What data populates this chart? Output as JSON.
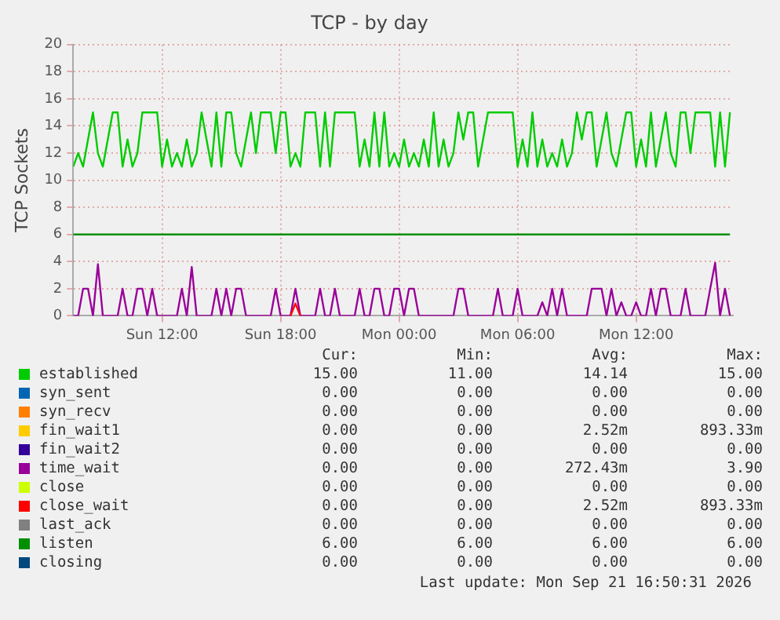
{
  "chart_data": {
    "type": "line",
    "title": "TCP - by day",
    "ylabel": "TCP Sockets",
    "x": [
      "2026-09-20T07:30",
      "2026-09-20T07:45",
      "2026-09-20T08:00",
      "2026-09-20T08:15",
      "2026-09-20T08:30",
      "2026-09-20T08:45",
      "2026-09-20T09:00",
      "2026-09-20T09:15",
      "2026-09-20T09:30",
      "2026-09-20T09:45",
      "2026-09-20T10:00",
      "2026-09-20T10:15",
      "2026-09-20T10:30",
      "2026-09-20T10:45",
      "2026-09-20T11:00",
      "2026-09-20T11:15",
      "2026-09-20T11:30",
      "2026-09-20T11:45",
      "2026-09-20T12:00",
      "2026-09-20T12:15",
      "2026-09-20T12:30",
      "2026-09-20T12:45",
      "2026-09-20T13:00",
      "2026-09-20T13:15",
      "2026-09-20T13:30",
      "2026-09-20T13:45",
      "2026-09-20T14:00",
      "2026-09-20T14:15",
      "2026-09-20T14:30",
      "2026-09-20T14:45",
      "2026-09-20T15:00",
      "2026-09-20T15:15",
      "2026-09-20T15:30",
      "2026-09-20T15:45",
      "2026-09-20T16:00",
      "2026-09-20T16:15",
      "2026-09-20T16:30",
      "2026-09-20T16:45",
      "2026-09-20T17:00",
      "2026-09-20T17:15",
      "2026-09-20T17:30",
      "2026-09-20T17:45",
      "2026-09-20T18:00",
      "2026-09-20T18:15",
      "2026-09-20T18:30",
      "2026-09-20T18:45",
      "2026-09-20T19:00",
      "2026-09-20T19:15",
      "2026-09-20T19:30",
      "2026-09-20T19:45",
      "2026-09-20T20:00",
      "2026-09-20T20:15",
      "2026-09-20T20:30",
      "2026-09-20T20:45",
      "2026-09-20T21:00",
      "2026-09-20T21:15",
      "2026-09-20T21:30",
      "2026-09-20T21:45",
      "2026-09-20T22:00",
      "2026-09-20T22:15",
      "2026-09-20T22:30",
      "2026-09-20T22:45",
      "2026-09-20T23:00",
      "2026-09-20T23:15",
      "2026-09-20T23:30",
      "2026-09-20T23:45",
      "2026-09-21T00:00",
      "2026-09-21T00:15",
      "2026-09-21T00:30",
      "2026-09-21T00:45",
      "2026-09-21T01:00",
      "2026-09-21T01:15",
      "2026-09-21T01:30",
      "2026-09-21T01:45",
      "2026-09-21T02:00",
      "2026-09-21T02:15",
      "2026-09-21T02:30",
      "2026-09-21T02:45",
      "2026-09-21T03:00",
      "2026-09-21T03:15",
      "2026-09-21T03:30",
      "2026-09-21T03:45",
      "2026-09-21T04:00",
      "2026-09-21T04:15",
      "2026-09-21T04:30",
      "2026-09-21T04:45",
      "2026-09-21T05:00",
      "2026-09-21T05:15",
      "2026-09-21T05:30",
      "2026-09-21T05:45",
      "2026-09-21T06:00",
      "2026-09-21T06:15",
      "2026-09-21T06:30",
      "2026-09-21T06:45",
      "2026-09-21T07:00",
      "2026-09-21T07:15",
      "2026-09-21T07:30",
      "2026-09-21T07:45",
      "2026-09-21T08:00",
      "2026-09-21T08:15",
      "2026-09-21T08:30",
      "2026-09-21T08:45",
      "2026-09-21T09:00",
      "2026-09-21T09:15",
      "2026-09-21T09:30",
      "2026-09-21T09:45",
      "2026-09-21T10:00",
      "2026-09-21T10:15",
      "2026-09-21T10:30",
      "2026-09-21T10:45",
      "2026-09-21T11:00",
      "2026-09-21T11:15",
      "2026-09-21T11:30",
      "2026-09-21T11:45",
      "2026-09-21T12:00",
      "2026-09-21T12:15",
      "2026-09-21T12:30",
      "2026-09-21T12:45",
      "2026-09-21T13:00",
      "2026-09-21T13:15",
      "2026-09-21T13:30",
      "2026-09-21T13:45",
      "2026-09-21T14:00",
      "2026-09-21T14:15",
      "2026-09-21T14:30",
      "2026-09-21T14:45",
      "2026-09-21T15:00",
      "2026-09-21T15:15",
      "2026-09-21T15:30",
      "2026-09-21T15:45",
      "2026-09-21T16:00",
      "2026-09-21T16:15",
      "2026-09-21T16:30",
      "2026-09-21T16:45"
    ],
    "series": [
      {
        "name": "established",
        "color": "#00cc00",
        "values": [
          11,
          12,
          11,
          13,
          15,
          12,
          11,
          13,
          15,
          15,
          11,
          13,
          11,
          12,
          15,
          15,
          15,
          15,
          11,
          13,
          11,
          12,
          11,
          13,
          11,
          12,
          15,
          13,
          11,
          15,
          11,
          15,
          15,
          12,
          11,
          13,
          15,
          12,
          15,
          15,
          15,
          12,
          15,
          15,
          11,
          12,
          11,
          15,
          15,
          15,
          11,
          15,
          11,
          15,
          15,
          15,
          15,
          15,
          11,
          13,
          11,
          15,
          11,
          15,
          11,
          12,
          11,
          13,
          11,
          12,
          11,
          13,
          11,
          15,
          11,
          13,
          11,
          12,
          15,
          13,
          15,
          15,
          11,
          13,
          15,
          15,
          15,
          15,
          15,
          15,
          11,
          13,
          11,
          15,
          11,
          13,
          11,
          12,
          11,
          13,
          11,
          12,
          15,
          13,
          15,
          15,
          11,
          13,
          15,
          12,
          11,
          13,
          15,
          15,
          11,
          13,
          11,
          15,
          11,
          13,
          15,
          12,
          11,
          15,
          15,
          12,
          15,
          15,
          15,
          15,
          11,
          15,
          11,
          15
        ]
      },
      {
        "name": "syn_sent",
        "color": "#0066b3",
        "values": [
          null,
          null,
          null,
          null,
          null,
          null,
          null,
          null,
          null,
          null,
          null,
          null,
          null,
          null,
          null,
          null,
          null,
          null,
          null,
          null,
          null,
          null,
          null,
          null,
          null,
          null,
          null,
          null,
          null,
          null,
          null,
          null,
          null,
          null,
          null,
          null,
          null,
          null,
          null,
          null,
          null,
          null,
          null,
          null,
          null,
          null,
          null,
          null,
          null,
          null,
          null,
          null,
          null,
          null,
          null,
          null,
          null,
          null,
          null,
          null,
          null,
          null,
          null,
          null,
          null,
          null,
          null,
          null,
          null,
          null,
          null,
          null,
          null,
          null,
          null,
          null,
          null,
          null,
          null,
          null,
          null,
          null,
          null,
          null,
          null,
          null,
          null,
          null,
          null,
          null,
          null,
          null,
          null,
          null,
          null,
          null,
          null,
          null,
          null,
          null,
          null,
          null,
          null,
          null,
          null,
          null,
          null,
          null,
          null,
          null,
          null,
          null,
          null,
          null,
          null,
          null,
          null,
          null,
          null,
          null,
          null,
          null,
          null,
          null,
          null,
          null,
          null,
          null,
          null,
          null,
          null,
          null,
          null,
          null
        ]
      },
      {
        "name": "syn_recv",
        "color": "#ff8000",
        "values": [
          null,
          null,
          null,
          null,
          null,
          null,
          null,
          null,
          null,
          null,
          null,
          null,
          null,
          null,
          null,
          null,
          null,
          null,
          null,
          null,
          null,
          null,
          null,
          null,
          null,
          null,
          null,
          null,
          null,
          null,
          null,
          null,
          null,
          null,
          null,
          null,
          null,
          null,
          null,
          null,
          null,
          null,
          null,
          null,
          null,
          null,
          null,
          null,
          null,
          null,
          null,
          null,
          null,
          null,
          null,
          null,
          null,
          null,
          null,
          null,
          null,
          null,
          null,
          null,
          null,
          null,
          null,
          null,
          null,
          null,
          null,
          null,
          null,
          null,
          null,
          null,
          null,
          null,
          null,
          null,
          null,
          null,
          null,
          null,
          null,
          null,
          null,
          null,
          null,
          null,
          null,
          null,
          null,
          null,
          null,
          null,
          null,
          null,
          null,
          null,
          null,
          null,
          null,
          null,
          null,
          null,
          null,
          null,
          null,
          null,
          null,
          null,
          null,
          null,
          null,
          null,
          null,
          null,
          null,
          null,
          null,
          null,
          null,
          null,
          null,
          null,
          null,
          null,
          null,
          null,
          null,
          null,
          null,
          null
        ]
      },
      {
        "name": "fin_wait1",
        "color": "#ffcc00",
        "values": [
          null,
          null,
          null,
          null,
          null,
          null,
          null,
          null,
          null,
          null,
          null,
          null,
          null,
          null,
          null,
          null,
          null,
          null,
          null,
          null,
          null,
          null,
          null,
          null,
          null,
          null,
          null,
          null,
          null,
          null,
          null,
          null,
          null,
          null,
          null,
          null,
          null,
          null,
          null,
          null,
          null,
          null,
          null,
          null,
          null,
          null,
          null,
          null,
          null,
          null,
          null,
          null,
          null,
          null,
          null,
          null,
          null,
          null,
          null,
          null,
          null,
          null,
          null,
          null,
          null,
          null,
          null,
          null,
          null,
          null,
          null,
          null,
          null,
          null,
          null,
          null,
          null,
          null,
          null,
          null,
          null,
          null,
          null,
          null,
          null,
          null,
          null,
          null,
          null,
          null,
          null,
          null,
          null,
          null,
          null,
          null,
          null,
          null,
          null,
          null,
          null,
          null,
          null,
          null,
          null,
          null,
          null,
          null,
          null,
          null,
          null,
          null,
          null,
          null,
          null,
          null,
          null,
          null,
          null,
          null,
          null,
          null,
          null,
          null,
          null,
          null,
          null,
          null,
          null,
          null,
          null,
          null,
          null,
          null
        ]
      },
      {
        "name": "fin_wait2",
        "color": "#330099",
        "values": [
          null,
          null,
          null,
          null,
          null,
          null,
          null,
          null,
          null,
          null,
          null,
          null,
          null,
          null,
          null,
          null,
          null,
          null,
          null,
          null,
          null,
          null,
          null,
          null,
          null,
          null,
          null,
          null,
          null,
          null,
          null,
          null,
          null,
          null,
          null,
          null,
          null,
          null,
          null,
          null,
          null,
          null,
          null,
          null,
          null,
          null,
          null,
          null,
          null,
          null,
          null,
          null,
          null,
          null,
          null,
          null,
          null,
          null,
          null,
          null,
          null,
          null,
          null,
          null,
          null,
          null,
          null,
          null,
          null,
          null,
          null,
          null,
          null,
          null,
          null,
          null,
          null,
          null,
          null,
          null,
          null,
          null,
          null,
          null,
          null,
          null,
          null,
          null,
          null,
          null,
          null,
          null,
          null,
          null,
          null,
          null,
          null,
          null,
          null,
          null,
          null,
          null,
          null,
          null,
          null,
          null,
          null,
          null,
          null,
          null,
          null,
          null,
          null,
          null,
          null,
          null,
          null,
          null,
          null,
          null,
          null,
          null,
          null,
          null,
          null,
          null,
          null,
          null,
          null,
          null,
          null,
          null,
          null,
          null
        ]
      },
      {
        "name": "time_wait",
        "color": "#990099",
        "values": [
          0,
          0,
          2,
          2,
          0,
          3.8,
          0,
          0,
          0,
          0,
          2,
          0,
          0,
          2,
          2,
          0,
          2,
          0,
          0,
          0,
          0,
          0,
          2,
          0,
          3.6,
          0,
          0,
          0,
          0,
          2,
          0,
          2,
          0,
          2,
          2,
          0,
          0,
          0,
          0,
          0,
          0,
          2,
          0,
          0,
          0,
          2,
          0,
          0,
          0,
          0,
          2,
          0,
          0,
          2,
          0,
          0,
          0,
          0,
          2,
          0,
          0,
          2,
          2,
          0,
          0,
          2,
          2,
          0,
          2,
          2,
          0,
          0,
          0,
          0,
          0,
          0,
          0,
          0,
          2,
          2,
          0,
          0,
          0,
          0,
          0,
          0,
          2,
          0,
          0,
          0,
          2,
          0,
          0,
          0,
          0,
          1,
          0,
          2,
          0,
          2,
          0,
          0,
          0,
          0,
          0,
          2,
          2,
          2,
          0,
          2,
          0,
          1,
          0,
          0,
          1,
          0,
          0,
          2,
          0,
          2,
          2,
          0,
          0,
          0,
          2,
          0,
          0,
          0,
          0,
          2,
          3.9,
          0,
          2,
          0
        ]
      },
      {
        "name": "close",
        "color": "#ccff00",
        "values": [
          null,
          null,
          null,
          null,
          null,
          null,
          null,
          null,
          null,
          null,
          null,
          null,
          null,
          null,
          null,
          null,
          null,
          null,
          null,
          null,
          null,
          null,
          null,
          null,
          null,
          null,
          null,
          null,
          null,
          null,
          null,
          null,
          null,
          null,
          null,
          null,
          null,
          null,
          null,
          null,
          null,
          null,
          null,
          null,
          null,
          null,
          null,
          null,
          null,
          null,
          null,
          null,
          null,
          null,
          null,
          null,
          null,
          null,
          null,
          null,
          null,
          null,
          null,
          null,
          null,
          null,
          null,
          null,
          null,
          null,
          null,
          null,
          null,
          null,
          null,
          null,
          null,
          null,
          null,
          null,
          null,
          null,
          null,
          null,
          null,
          null,
          null,
          null,
          null,
          null,
          null,
          null,
          null,
          null,
          null,
          null,
          null,
          null,
          null,
          null,
          null,
          null,
          null,
          null,
          null,
          null,
          null,
          null,
          null,
          null,
          null,
          null,
          null,
          null,
          null,
          null,
          null,
          null,
          null,
          null,
          null,
          null,
          null,
          null,
          null,
          null,
          null,
          null,
          null,
          null,
          null,
          null,
          null,
          null
        ]
      },
      {
        "name": "close_wait",
        "color": "#ff0000",
        "x": [
          "2026-09-20T18:30",
          "2026-09-20T18:45",
          "2026-09-20T19:00"
        ],
        "values": [
          0,
          0.9,
          0
        ]
      },
      {
        "name": "last_ack",
        "color": "#808080",
        "values": [
          null,
          null,
          null,
          null,
          null,
          null,
          null,
          null,
          null,
          null,
          null,
          null,
          null,
          null,
          null,
          null,
          null,
          null,
          null,
          null,
          null,
          null,
          null,
          null,
          null,
          null,
          null,
          null,
          null,
          null,
          null,
          null,
          null,
          null,
          null,
          null,
          null,
          null,
          null,
          null,
          null,
          null,
          null,
          null,
          null,
          null,
          null,
          null,
          null,
          null,
          null,
          null,
          null,
          null,
          null,
          null,
          null,
          null,
          null,
          null,
          null,
          null,
          null,
          null,
          null,
          null,
          null,
          null,
          null,
          null,
          null,
          null,
          null,
          null,
          null,
          null,
          null,
          null,
          null,
          null,
          null,
          null,
          null,
          null,
          null,
          null,
          null,
          null,
          null,
          null,
          null,
          null,
          null,
          null,
          null,
          null,
          null,
          null,
          null,
          null,
          null,
          null,
          null,
          null,
          null,
          null,
          null,
          null,
          null,
          null,
          null,
          null,
          null,
          null,
          null,
          null,
          null,
          null,
          null,
          null,
          null,
          null,
          null,
          null,
          null,
          null,
          null,
          null,
          null,
          null,
          null,
          null,
          null,
          null
        ]
      },
      {
        "name": "listen",
        "color": "#008f00",
        "x": [
          "2026-09-20T07:30",
          "2026-09-21T16:45"
        ],
        "values": [
          6,
          6
        ]
      },
      {
        "name": "closing",
        "color": "#00487d",
        "values": [
          null,
          null,
          null,
          null,
          null,
          null,
          null,
          null,
          null,
          null,
          null,
          null,
          null,
          null,
          null,
          null,
          null,
          null,
          null,
          null,
          null,
          null,
          null,
          null,
          null,
          null,
          null,
          null,
          null,
          null,
          null,
          null,
          null,
          null,
          null,
          null,
          null,
          null,
          null,
          null,
          null,
          null,
          null,
          null,
          null,
          null,
          null,
          null,
          null,
          null,
          null,
          null,
          null,
          null,
          null,
          null,
          null,
          null,
          null,
          null,
          null,
          null,
          null,
          null,
          null,
          null,
          null,
          null,
          null,
          null,
          null,
          null,
          null,
          null,
          null,
          null,
          null,
          null,
          null,
          null,
          null,
          null,
          null,
          null,
          null,
          null,
          null,
          null,
          null,
          null,
          null,
          null,
          null,
          null,
          null,
          null,
          null,
          null,
          null,
          null,
          null,
          null,
          null,
          null,
          null,
          null,
          null,
          null,
          null,
          null,
          null,
          null,
          null,
          null,
          null,
          null,
          null,
          null,
          null,
          null,
          null,
          null,
          null,
          null,
          null,
          null,
          null,
          null,
          null,
          null,
          null,
          null,
          null,
          null
        ]
      }
    ],
    "xlim": [
      "2026-09-20T07:30",
      "2026-09-21T16:54"
    ],
    "xticks": [
      {
        "value": "2026-09-20T12:00",
        "label": "Sun 12:00"
      },
      {
        "value": "2026-09-20T18:00",
        "label": "Sun 18:00"
      },
      {
        "value": "2026-09-21T00:00",
        "label": "Mon 00:00"
      },
      {
        "value": "2026-09-21T06:00",
        "label": "Mon 06:00"
      },
      {
        "value": "2026-09-21T12:00",
        "label": "Mon 12:00"
      }
    ],
    "ylim": [
      0,
      20
    ],
    "yticks": [
      0,
      2,
      4,
      6,
      8,
      10,
      12,
      14,
      16,
      18,
      20
    ],
    "grid": true,
    "legend": "bottom",
    "marker": "none",
    "line_style": "solid",
    "annotations": [
      "Cur:",
      "Min:",
      "Avg:",
      "Max:",
      "15.00",
      "11.00",
      "14.14",
      "15.00",
      "0.00",
      "0.00",
      "0.00",
      "0.00",
      "0.00",
      "0.00",
      "0.00",
      "0.00",
      "0.00",
      "0.00",
      "2.52m",
      "893.33m",
      "0.00",
      "0.00",
      "0.00",
      "0.00",
      "0.00",
      "0.00",
      "272.43m",
      "3.90",
      "0.00",
      "0.00",
      "0.00",
      "0.00",
      "0.00",
      "0.00",
      "2.52m",
      "893.33m",
      "0.00",
      "0.00",
      "0.00",
      "0.00",
      "6.00",
      "6.00",
      "6.00",
      "6.00",
      "0.00",
      "0.00",
      "0.00",
      "0.00",
      "Last update: Mon Sep 21 16:50:31 2026"
    ]
  }
}
